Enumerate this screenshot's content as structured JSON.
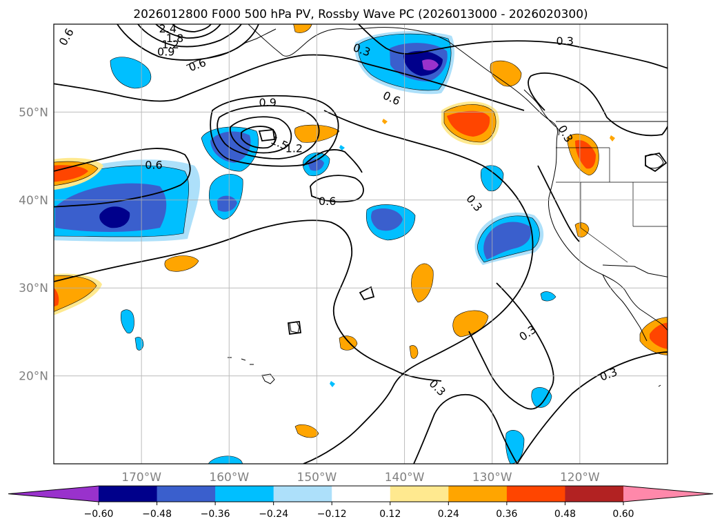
{
  "title": "2026012800 F000 500 hPa PV, Rossby Wave PC (2026013000 - 2026020300)",
  "map": {
    "lon_range": [
      -180,
      -110
    ],
    "lat_range": [
      10,
      60
    ],
    "lon_ticks": [
      {
        "value": -170,
        "label": "170°W"
      },
      {
        "value": -160,
        "label": "160°W"
      },
      {
        "value": -150,
        "label": "150°W"
      },
      {
        "value": -140,
        "label": "140°W"
      },
      {
        "value": -130,
        "label": "130°W"
      },
      {
        "value": -120,
        "label": "120°W"
      }
    ],
    "lat_ticks": [
      {
        "value": 20,
        "label": "20°N"
      },
      {
        "value": 30,
        "label": "30°N"
      },
      {
        "value": 40,
        "label": "40°N"
      },
      {
        "value": 50,
        "label": "50°N"
      }
    ],
    "gridlines": true,
    "tick_label_color": "#808080"
  },
  "contour_labels": [
    {
      "text": "0.6",
      "lon": -178.5,
      "lat": 58.5,
      "rot": -60
    },
    {
      "text": "2.4",
      "lon": -167,
      "lat": 59.4,
      "rot": 0
    },
    {
      "text": "1.8",
      "lon": -166.2,
      "lat": 58.3,
      "rot": 0
    },
    {
      "text": "1.2",
      "lon": -166.7,
      "lat": 57.6,
      "rot": 0
    },
    {
      "text": "0.9",
      "lon": -167.2,
      "lat": 56.8,
      "rot": 0
    },
    {
      "text": "0.6",
      "lon": -163.6,
      "lat": 55.3,
      "rot": -20
    },
    {
      "text": "0.3",
      "lon": -144.9,
      "lat": 57,
      "rot": 20
    },
    {
      "text": "0.3",
      "lon": -121.7,
      "lat": 58,
      "rot": 0
    },
    {
      "text": "0.6",
      "lon": -141.5,
      "lat": 51.5,
      "rot": 25
    },
    {
      "text": "0.9",
      "lon": -155.6,
      "lat": 51,
      "rot": 0
    },
    {
      "text": "1.5",
      "lon": -154.3,
      "lat": 46.4,
      "rot": 25
    },
    {
      "text": "1.2",
      "lon": -152.6,
      "lat": 45.8,
      "rot": 0
    },
    {
      "text": "0.6",
      "lon": -168.6,
      "lat": 43.9,
      "rot": 0
    },
    {
      "text": "0.6",
      "lon": -148.8,
      "lat": 39.8,
      "rot": 0
    },
    {
      "text": "0.3",
      "lon": -132.1,
      "lat": 39.6,
      "rot": 50
    },
    {
      "text": "0.3",
      "lon": -121.7,
      "lat": 47.5,
      "rot": 60
    },
    {
      "text": "0.3",
      "lon": -125.9,
      "lat": 24.8,
      "rot": -35
    },
    {
      "text": "0.3",
      "lon": -116.7,
      "lat": 20.1,
      "rot": -20
    },
    {
      "text": "0.3",
      "lon": -136.3,
      "lat": 18.6,
      "rot": 45
    }
  ],
  "colorbar": {
    "levels": [
      -0.6,
      -0.48,
      -0.36,
      -0.24,
      -0.12,
      0.12,
      0.24,
      0.36,
      0.48,
      0.6
    ],
    "tick_labels": [
      "−0.60",
      "−0.48",
      "−0.36",
      "−0.24",
      "−0.12",
      "0.12",
      "0.24",
      "0.36",
      "0.48",
      "0.60"
    ],
    "colors": [
      "#9932cc",
      "#00008b",
      "#3a5fcd",
      "#00bfff",
      "#ade0fa",
      "#ffffff",
      "#ffe98f",
      "#ffa500",
      "#ff4500",
      "#b22222",
      "#ff88aa"
    ],
    "extend": "both"
  }
}
